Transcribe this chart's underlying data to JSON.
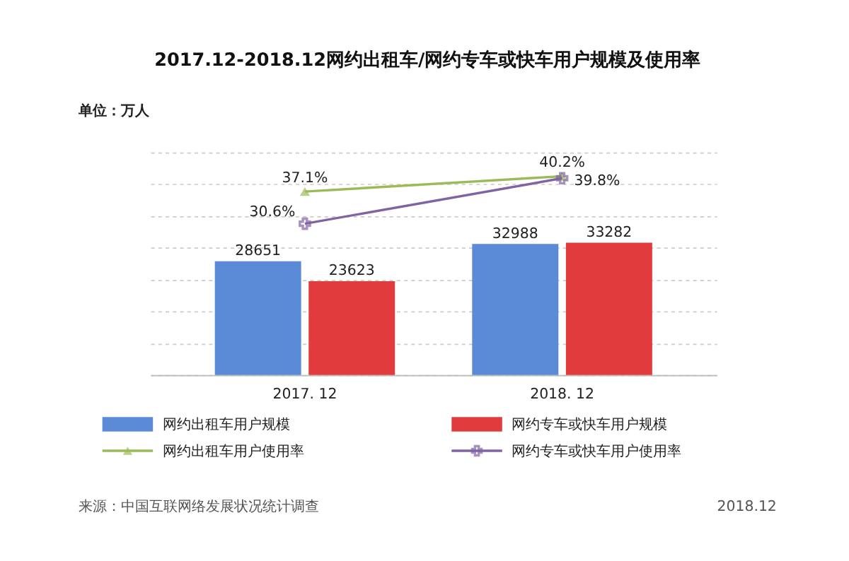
{
  "chart_data": {
    "type": "bar",
    "title": "2017.12-2018.12网约出租车/网约专车或快车用户规模及使用率",
    "ylabel": "单位：万人",
    "categories": [
      "2017. 12",
      "2018. 12"
    ],
    "series": [
      {
        "name": "网约出租车用户规模",
        "color": "#5b8bd6",
        "values": [
          28651,
          32988
        ]
      },
      {
        "name": "网约专车或快车用户规模",
        "color": "#e23b3e",
        "values": [
          23623,
          33282
        ]
      },
      {
        "name": "网约出租车用户使用率",
        "type": "line",
        "axis": "y2",
        "marker": "triangle",
        "color": "#9bbb59",
        "values": [
          37.1,
          40.2
        ],
        "value_labels": [
          "37.1%",
          "40.2%"
        ]
      },
      {
        "name": "网约专车或快车用户使用率",
        "type": "line",
        "axis": "y2",
        "marker": "cross",
        "color": "#8064a2",
        "values": [
          30.6,
          39.8
        ],
        "value_labels": [
          "30.6%",
          "39.8%"
        ]
      }
    ],
    "data_labels": true,
    "ylim": [
      0,
      56000
    ],
    "yticks": [
      {
        "value": 0,
        "label": null
      },
      {
        "value": 8000,
        "label": null
      },
      {
        "value": 16000,
        "label": null
      },
      {
        "value": 24000,
        "label": null
      },
      {
        "value": 32000,
        "label": null
      },
      {
        "value": 40000,
        "label": null
      },
      {
        "value": 48000,
        "label": null
      },
      {
        "value": 56000,
        "label": null
      }
    ],
    "tick_labels": "x",
    "grid": "y",
    "legend": "bottom",
    "annotations": [
      "来源：中国互联网络发展状况统计调查",
      "2018.12"
    ]
  }
}
